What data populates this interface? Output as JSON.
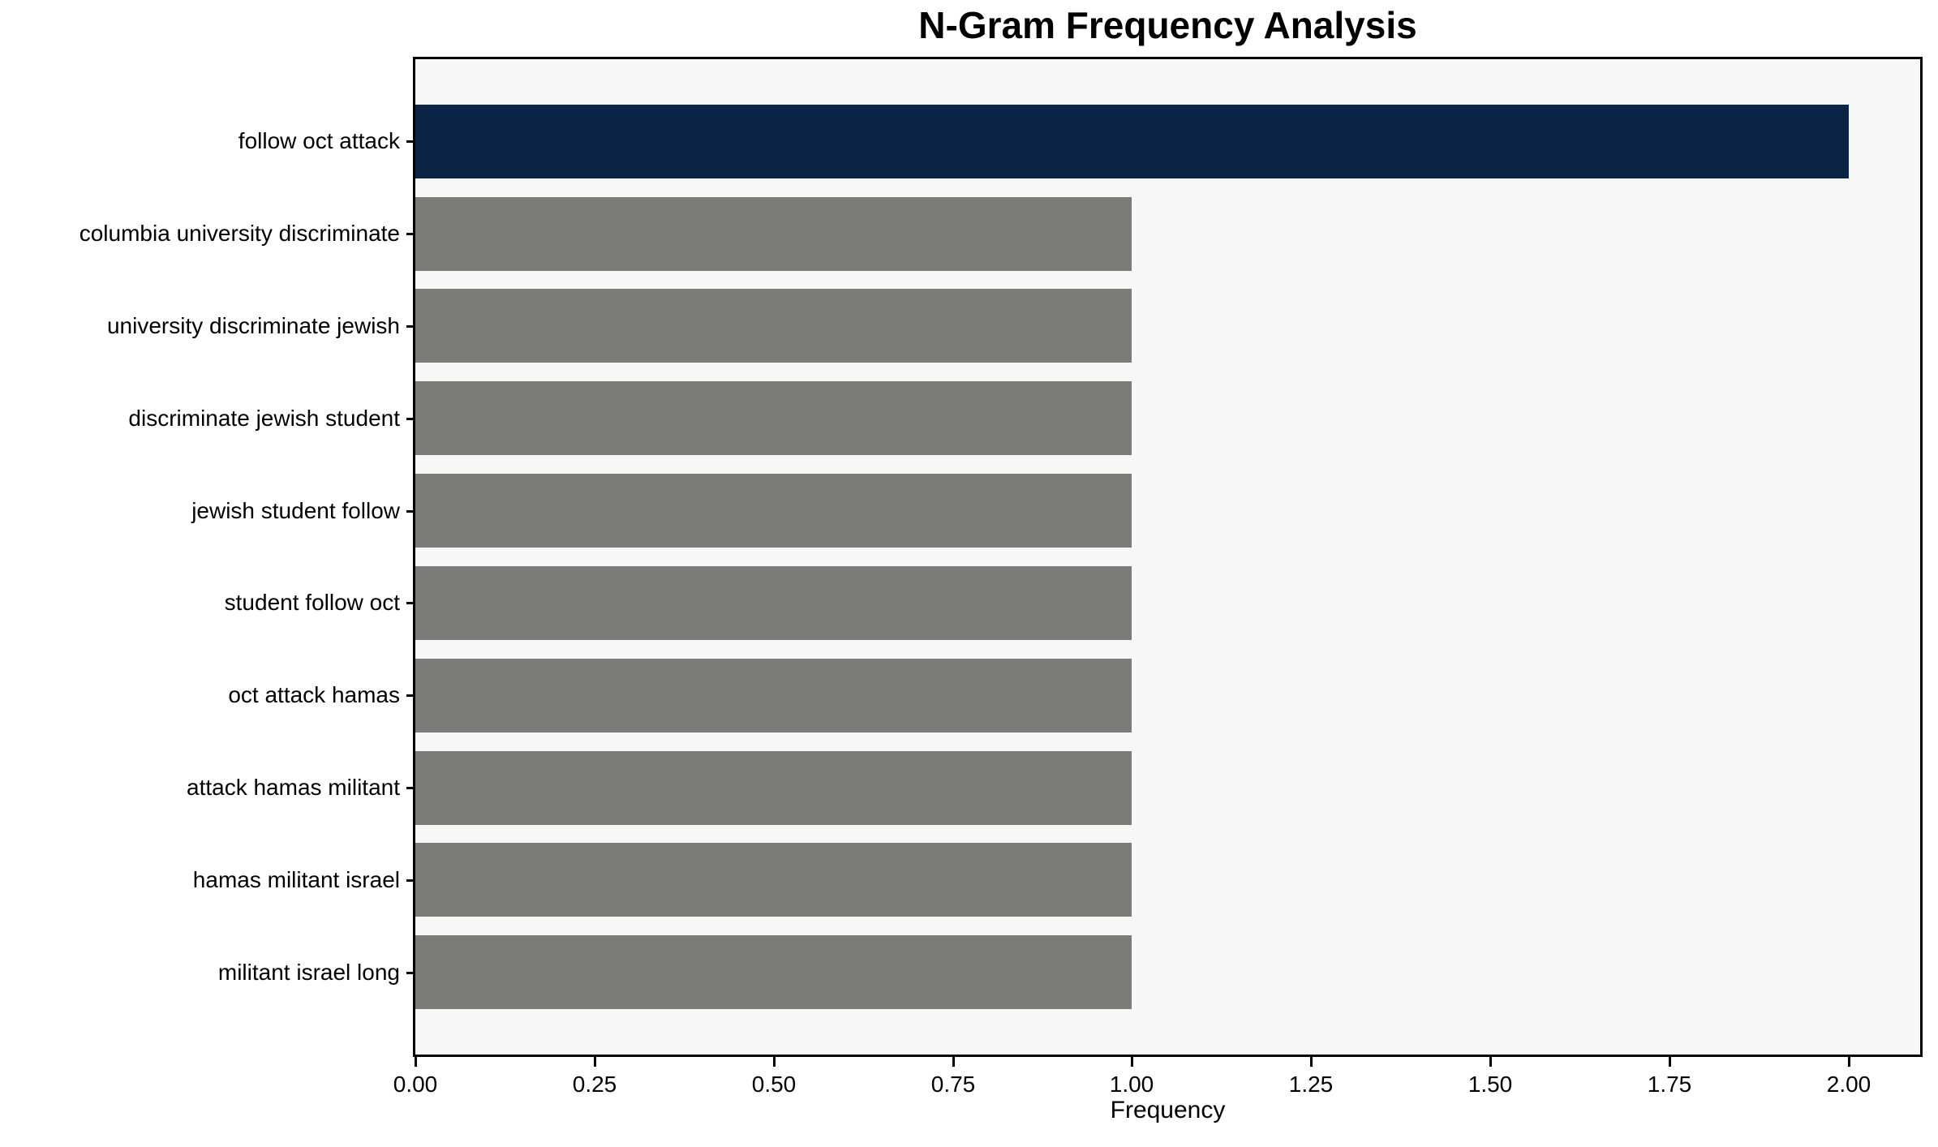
{
  "chart_data": {
    "type": "bar",
    "orientation": "horizontal",
    "title": "N-Gram Frequency Analysis",
    "xlabel": "Frequency",
    "ylabel": "",
    "categories": [
      "follow oct attack",
      "columbia university discriminate",
      "university discriminate jewish",
      "discriminate jewish student",
      "jewish student follow",
      "student follow oct",
      "oct attack hamas",
      "attack hamas militant",
      "hamas militant israel",
      "militant israel long"
    ],
    "values": [
      2,
      1,
      1,
      1,
      1,
      1,
      1,
      1,
      1,
      1
    ],
    "bar_colors": [
      "#0b2344",
      "#7b7b78",
      "#7b7b78",
      "#7b7b78",
      "#7b7b78",
      "#7b7b78",
      "#7b7b78",
      "#7b7b78",
      "#7b7b78",
      "#7b7b78"
    ],
    "xlim": [
      0,
      2.1
    ],
    "x_tick_values": [
      0,
      0.25,
      0.5,
      0.75,
      1.0,
      1.25,
      1.5,
      1.75,
      2.0
    ],
    "x_tick_labels": [
      "0.00",
      "0.25",
      "0.50",
      "0.75",
      "1.00",
      "1.25",
      "1.50",
      "1.75",
      "2.00"
    ],
    "plot_background": "#f7f7f7",
    "page_background": "#ffffff",
    "axis_color": "#000000",
    "grid": false,
    "legend": null
  }
}
